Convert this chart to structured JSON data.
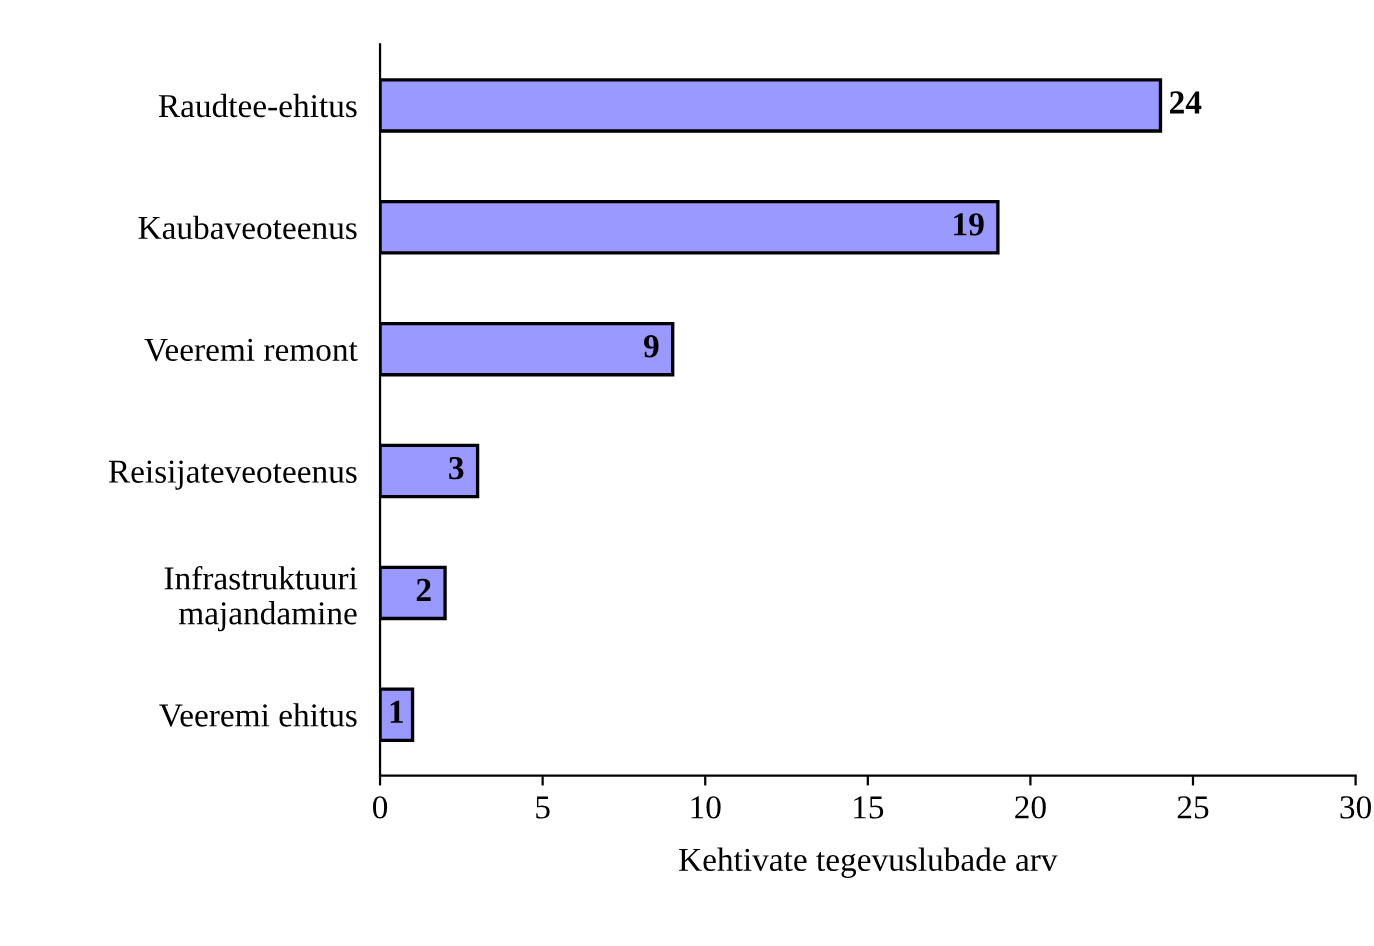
{
  "chart_data": {
    "type": "bar",
    "orientation": "horizontal",
    "xlabel": "Kehtivate tegevuslubade arv",
    "categories": [
      "Raudtee-ehitus",
      "Kaubaveoteenus",
      "Veeremi remont",
      "Reisijateveoteenus",
      "Infrastruktuuri\nmajandamine",
      "Veeremi ehitus"
    ],
    "values": [
      24,
      19,
      9,
      3,
      2,
      1
    ],
    "color": "#9999ff",
    "data_labels": true,
    "xlim": [
      0,
      30
    ],
    "xticks": [
      0,
      5,
      10,
      15,
      20,
      25,
      30
    ],
    "grid": false,
    "legend": false
  }
}
